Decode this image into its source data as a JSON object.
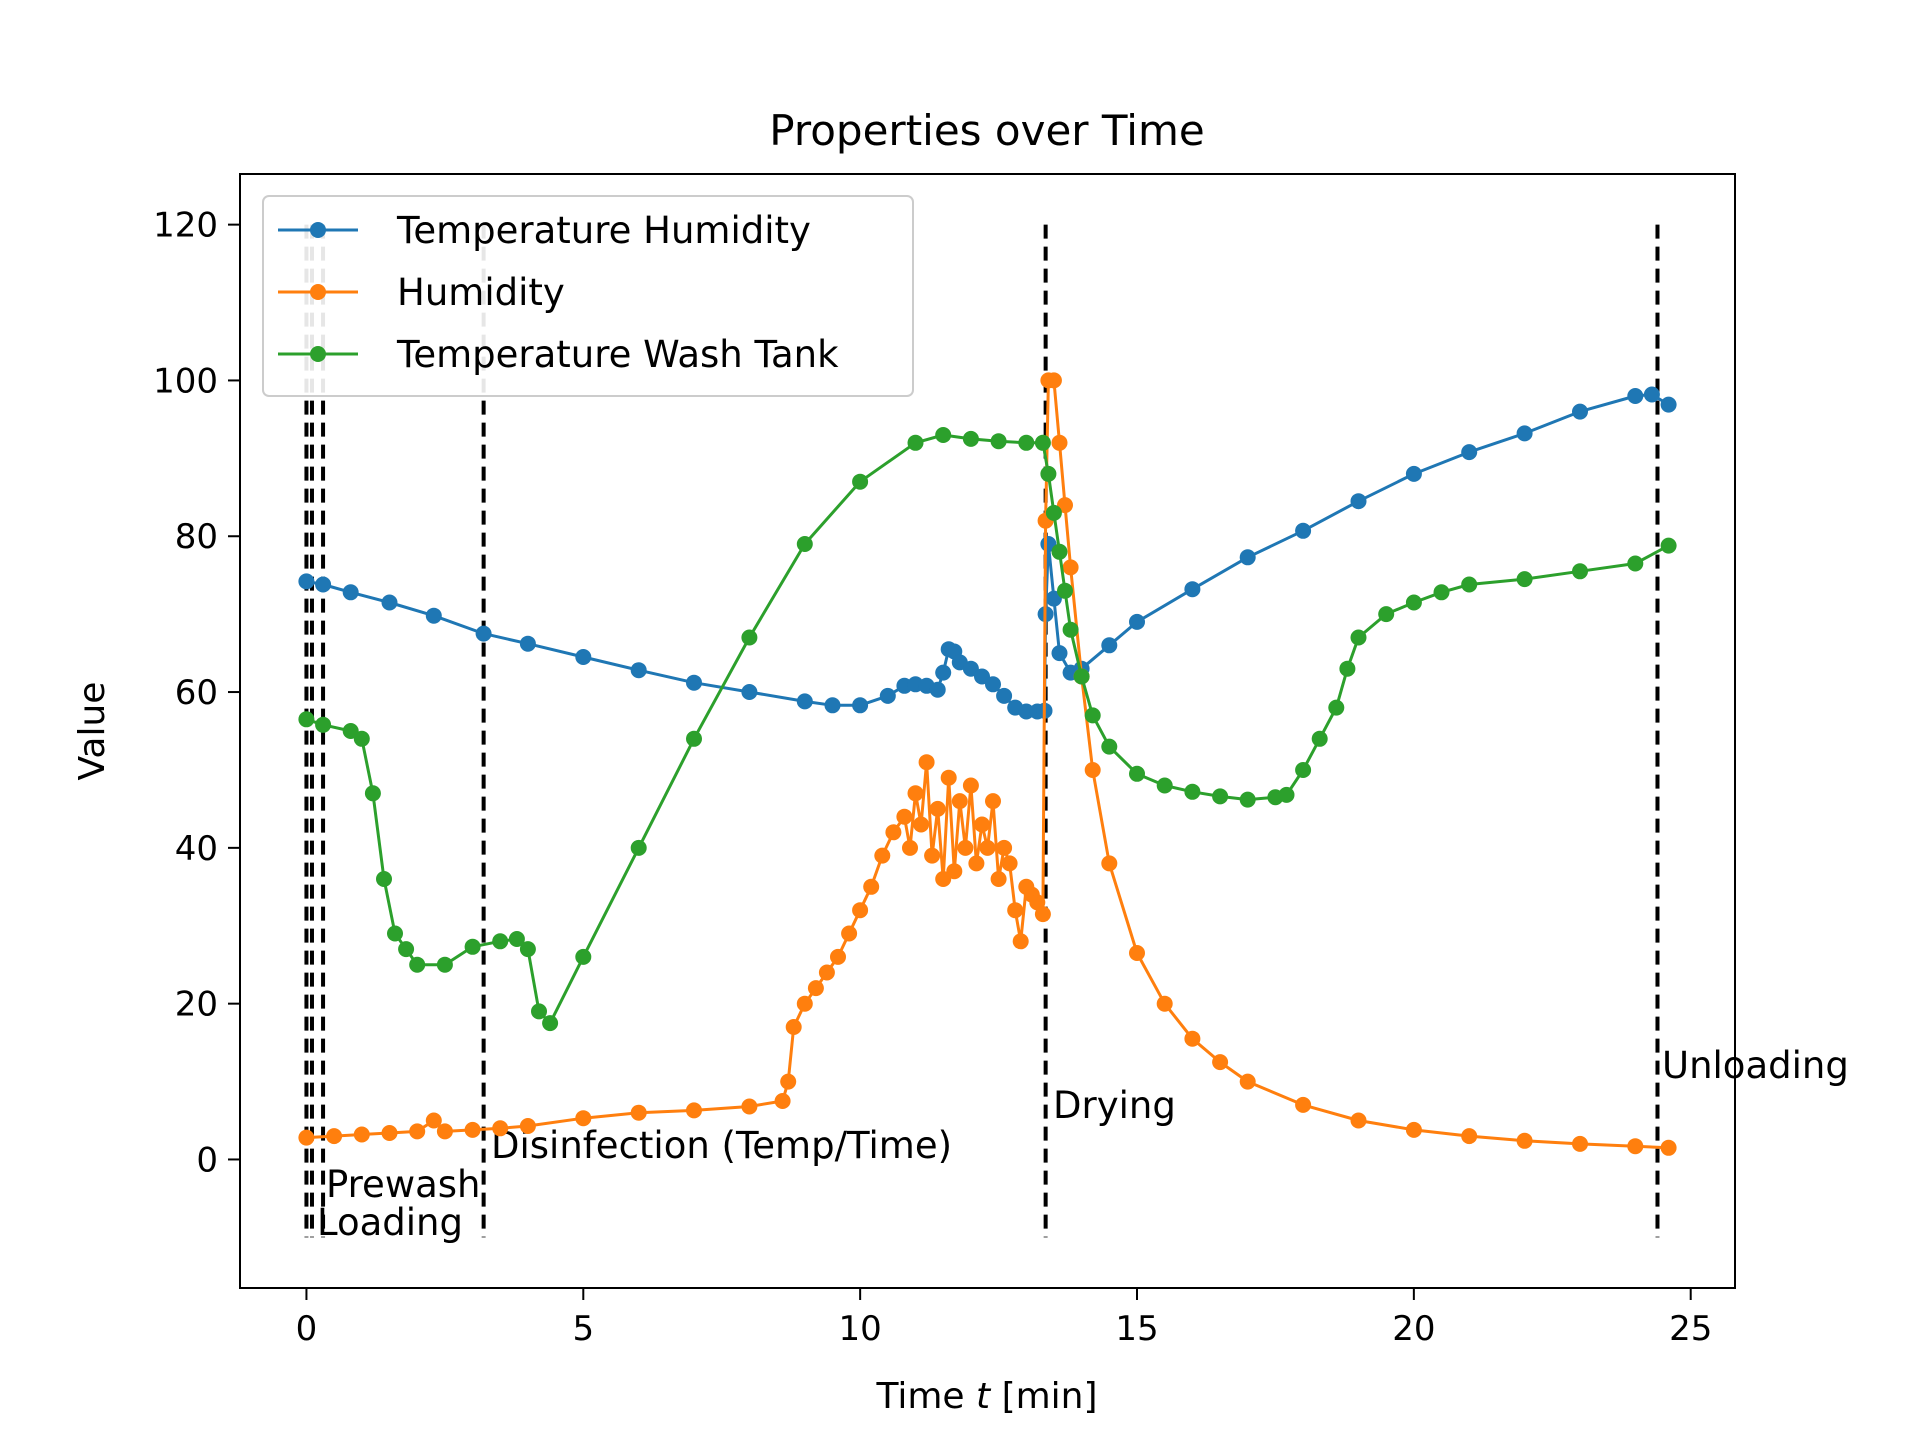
{
  "chart_data": {
    "type": "line",
    "title": "Properties over Time",
    "xlabel_prefix": "Time ",
    "xlabel_var": "t",
    "xlabel_suffix": " [min]",
    "ylabel": "Value",
    "xlim": [
      -1.2,
      25.8
    ],
    "ylim": [
      -16.5,
      126.5
    ],
    "xticks": [
      0,
      5,
      10,
      15,
      20,
      25
    ],
    "yticks": [
      0,
      20,
      40,
      60,
      80,
      100,
      120
    ],
    "grid": false,
    "legend_position": "upper-left",
    "series": [
      {
        "name": "Temperature Humidity",
        "color": "#1f77b4",
        "x": [
          0,
          0.3,
          0.8,
          1.5,
          2.3,
          3.2,
          4.0,
          5.0,
          6.0,
          7.0,
          8.0,
          9.0,
          9.5,
          10.0,
          10.5,
          10.8,
          11.0,
          11.2,
          11.4,
          11.5,
          11.6,
          11.7,
          11.8,
          12.0,
          12.2,
          12.4,
          12.6,
          12.8,
          13.0,
          13.2,
          13.33,
          13.35,
          13.4,
          13.5,
          13.6,
          13.8,
          14.0,
          14.5,
          15.0,
          16.0,
          17.0,
          18.0,
          19.0,
          20.0,
          21.0,
          22.0,
          23.0,
          24.0,
          24.3,
          24.6
        ],
        "y": [
          74.2,
          73.8,
          72.8,
          71.5,
          69.8,
          67.5,
          66.2,
          64.5,
          62.8,
          61.2,
          60.0,
          58.8,
          58.3,
          58.3,
          59.5,
          60.8,
          61.0,
          60.8,
          60.3,
          62.5,
          65.5,
          65.2,
          63.8,
          63.0,
          62.0,
          61.0,
          59.5,
          58.0,
          57.5,
          57.5,
          57.6,
          70.0,
          79.0,
          72.0,
          65.0,
          62.5,
          63.0,
          66.0,
          69.0,
          73.2,
          77.3,
          80.7,
          84.5,
          88.0,
          90.8,
          93.2,
          96.0,
          98.0,
          98.2,
          96.9
        ]
      },
      {
        "name": "Humidity",
        "color": "#ff7f0e",
        "x": [
          0,
          0.5,
          1.0,
          1.5,
          2.0,
          2.3,
          2.5,
          3.0,
          3.5,
          4.0,
          5.0,
          6.0,
          7.0,
          8.0,
          8.6,
          8.7,
          8.8,
          9.0,
          9.2,
          9.4,
          9.6,
          9.8,
          10.0,
          10.2,
          10.4,
          10.6,
          10.8,
          10.9,
          11.0,
          11.1,
          11.2,
          11.3,
          11.4,
          11.5,
          11.6,
          11.7,
          11.8,
          11.9,
          12.0,
          12.1,
          12.2,
          12.3,
          12.4,
          12.5,
          12.6,
          12.7,
          12.8,
          12.9,
          13.0,
          13.1,
          13.2,
          13.3,
          13.35,
          13.4,
          13.5,
          13.6,
          13.7,
          13.8,
          14.0,
          14.2,
          14.5,
          15.0,
          15.5,
          16.0,
          16.5,
          17.0,
          18.0,
          19.0,
          20.0,
          21.0,
          22.0,
          23.0,
          24.0,
          24.6
        ],
        "y": [
          2.8,
          3.0,
          3.2,
          3.4,
          3.6,
          5.0,
          3.6,
          3.8,
          4.0,
          4.3,
          5.3,
          6.0,
          6.3,
          6.8,
          7.5,
          10.0,
          17.0,
          20.0,
          22.0,
          24.0,
          26.0,
          29.0,
          32.0,
          35.0,
          39.0,
          42.0,
          44.0,
          40.0,
          47.0,
          43.0,
          51.0,
          39.0,
          45.0,
          36.0,
          49.0,
          37.0,
          46.0,
          40.0,
          48.0,
          38.0,
          43.0,
          40.0,
          46.0,
          36.0,
          40.0,
          38.0,
          32.0,
          28.0,
          35.0,
          34.0,
          33.0,
          31.5,
          82.0,
          100.0,
          100.0,
          92.0,
          84.0,
          76.0,
          62.0,
          50.0,
          38.0,
          26.5,
          20.0,
          15.5,
          12.5,
          10.0,
          7.0,
          5.0,
          3.8,
          3.0,
          2.4,
          2.0,
          1.7,
          1.5
        ]
      },
      {
        "name": "Temperature Wash Tank",
        "color": "#2ca02c",
        "x": [
          0,
          0.3,
          0.8,
          1.0,
          1.2,
          1.4,
          1.6,
          1.8,
          2.0,
          2.5,
          3.0,
          3.5,
          3.8,
          4.0,
          4.2,
          4.4,
          5.0,
          6.0,
          7.0,
          8.0,
          9.0,
          10.0,
          11.0,
          11.5,
          12.0,
          12.5,
          13.0,
          13.3,
          13.4,
          13.5,
          13.6,
          13.7,
          13.8,
          14.0,
          14.2,
          14.5,
          15.0,
          15.5,
          16.0,
          16.5,
          17.0,
          17.5,
          17.7,
          18.0,
          18.3,
          18.6,
          18.8,
          19.0,
          19.5,
          20.0,
          20.5,
          21.0,
          22.0,
          23.0,
          24.0,
          24.6
        ],
        "y": [
          56.5,
          55.8,
          55.0,
          54.0,
          47.0,
          36.0,
          29.0,
          27.0,
          25.0,
          25.0,
          27.3,
          28.0,
          28.3,
          27.0,
          19.0,
          17.5,
          26.0,
          40.0,
          54.0,
          67.0,
          79.0,
          87.0,
          92.0,
          93.0,
          92.5,
          92.2,
          92.0,
          92.0,
          88.0,
          83.0,
          78.0,
          73.0,
          68.0,
          62.0,
          57.0,
          53.0,
          49.5,
          48.0,
          47.2,
          46.6,
          46.2,
          46.5,
          46.8,
          50.0,
          54.0,
          58.0,
          63.0,
          67.0,
          70.0,
          71.5,
          72.8,
          73.8,
          74.5,
          75.5,
          76.5,
          78.8
        ]
      }
    ],
    "phase_markers": [
      {
        "x": 0.0,
        "label": ""
      },
      {
        "x": 0.1,
        "label": "Loading"
      },
      {
        "x": 0.3,
        "label": "Prewash"
      },
      {
        "x": 3.2,
        "label": "Disinfection (Temp/Time)"
      },
      {
        "x": 13.35,
        "label": "Drying"
      },
      {
        "x": 24.4,
        "label": "Unloading"
      }
    ],
    "phase_line_range": [
      -10,
      120
    ]
  }
}
